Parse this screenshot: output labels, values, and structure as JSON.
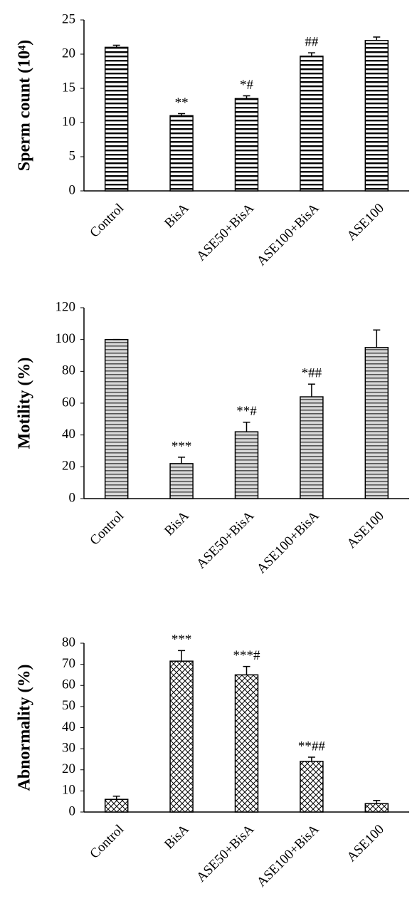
{
  "chart_data": [
    {
      "type": "bar",
      "ylabel": "Sperm count (10⁴)",
      "categories": [
        "Control",
        "BisA",
        "ASE50+BisA",
        "ASE100+BisA",
        "ASE100"
      ],
      "values": [
        21,
        11,
        13.5,
        19.7,
        22
      ],
      "errors": [
        0.3,
        0.3,
        0.4,
        0.5,
        0.5
      ],
      "annotations": [
        null,
        "**",
        "*#",
        "##",
        null
      ],
      "ylim": [
        0,
        25
      ],
      "yticks": [
        0,
        5,
        10,
        15,
        20,
        25
      ],
      "pattern": "stripes",
      "color": "#000000"
    },
    {
      "type": "bar",
      "ylabel": "Motility (%)",
      "categories": [
        "Control",
        "BisA",
        "ASE50+BisA",
        "ASE100+BisA",
        "ASE100"
      ],
      "values": [
        100,
        22,
        42,
        64,
        95
      ],
      "errors": [
        0,
        4,
        6,
        8,
        11
      ],
      "annotations": [
        null,
        "***",
        "**#",
        "*##",
        null
      ],
      "ylim": [
        0,
        120
      ],
      "yticks": [
        0,
        20,
        40,
        60,
        80,
        100,
        120
      ],
      "pattern": "gray-stripes",
      "color": "#000000"
    },
    {
      "type": "bar",
      "ylabel": "Abnormality (%)",
      "categories": [
        "Control",
        "BisA",
        "ASE50+BisA",
        "ASE100+BisA",
        "ASE100"
      ],
      "values": [
        6,
        71.5,
        65,
        24,
        4
      ],
      "errors": [
        1.5,
        5,
        4,
        2,
        1.5
      ],
      "annotations": [
        null,
        "***",
        "***#",
        "**##",
        null
      ],
      "ylim": [
        0,
        80
      ],
      "yticks": [
        0,
        10,
        20,
        30,
        40,
        50,
        60,
        70,
        80
      ],
      "pattern": "crosshatch",
      "color": "#000000"
    }
  ]
}
